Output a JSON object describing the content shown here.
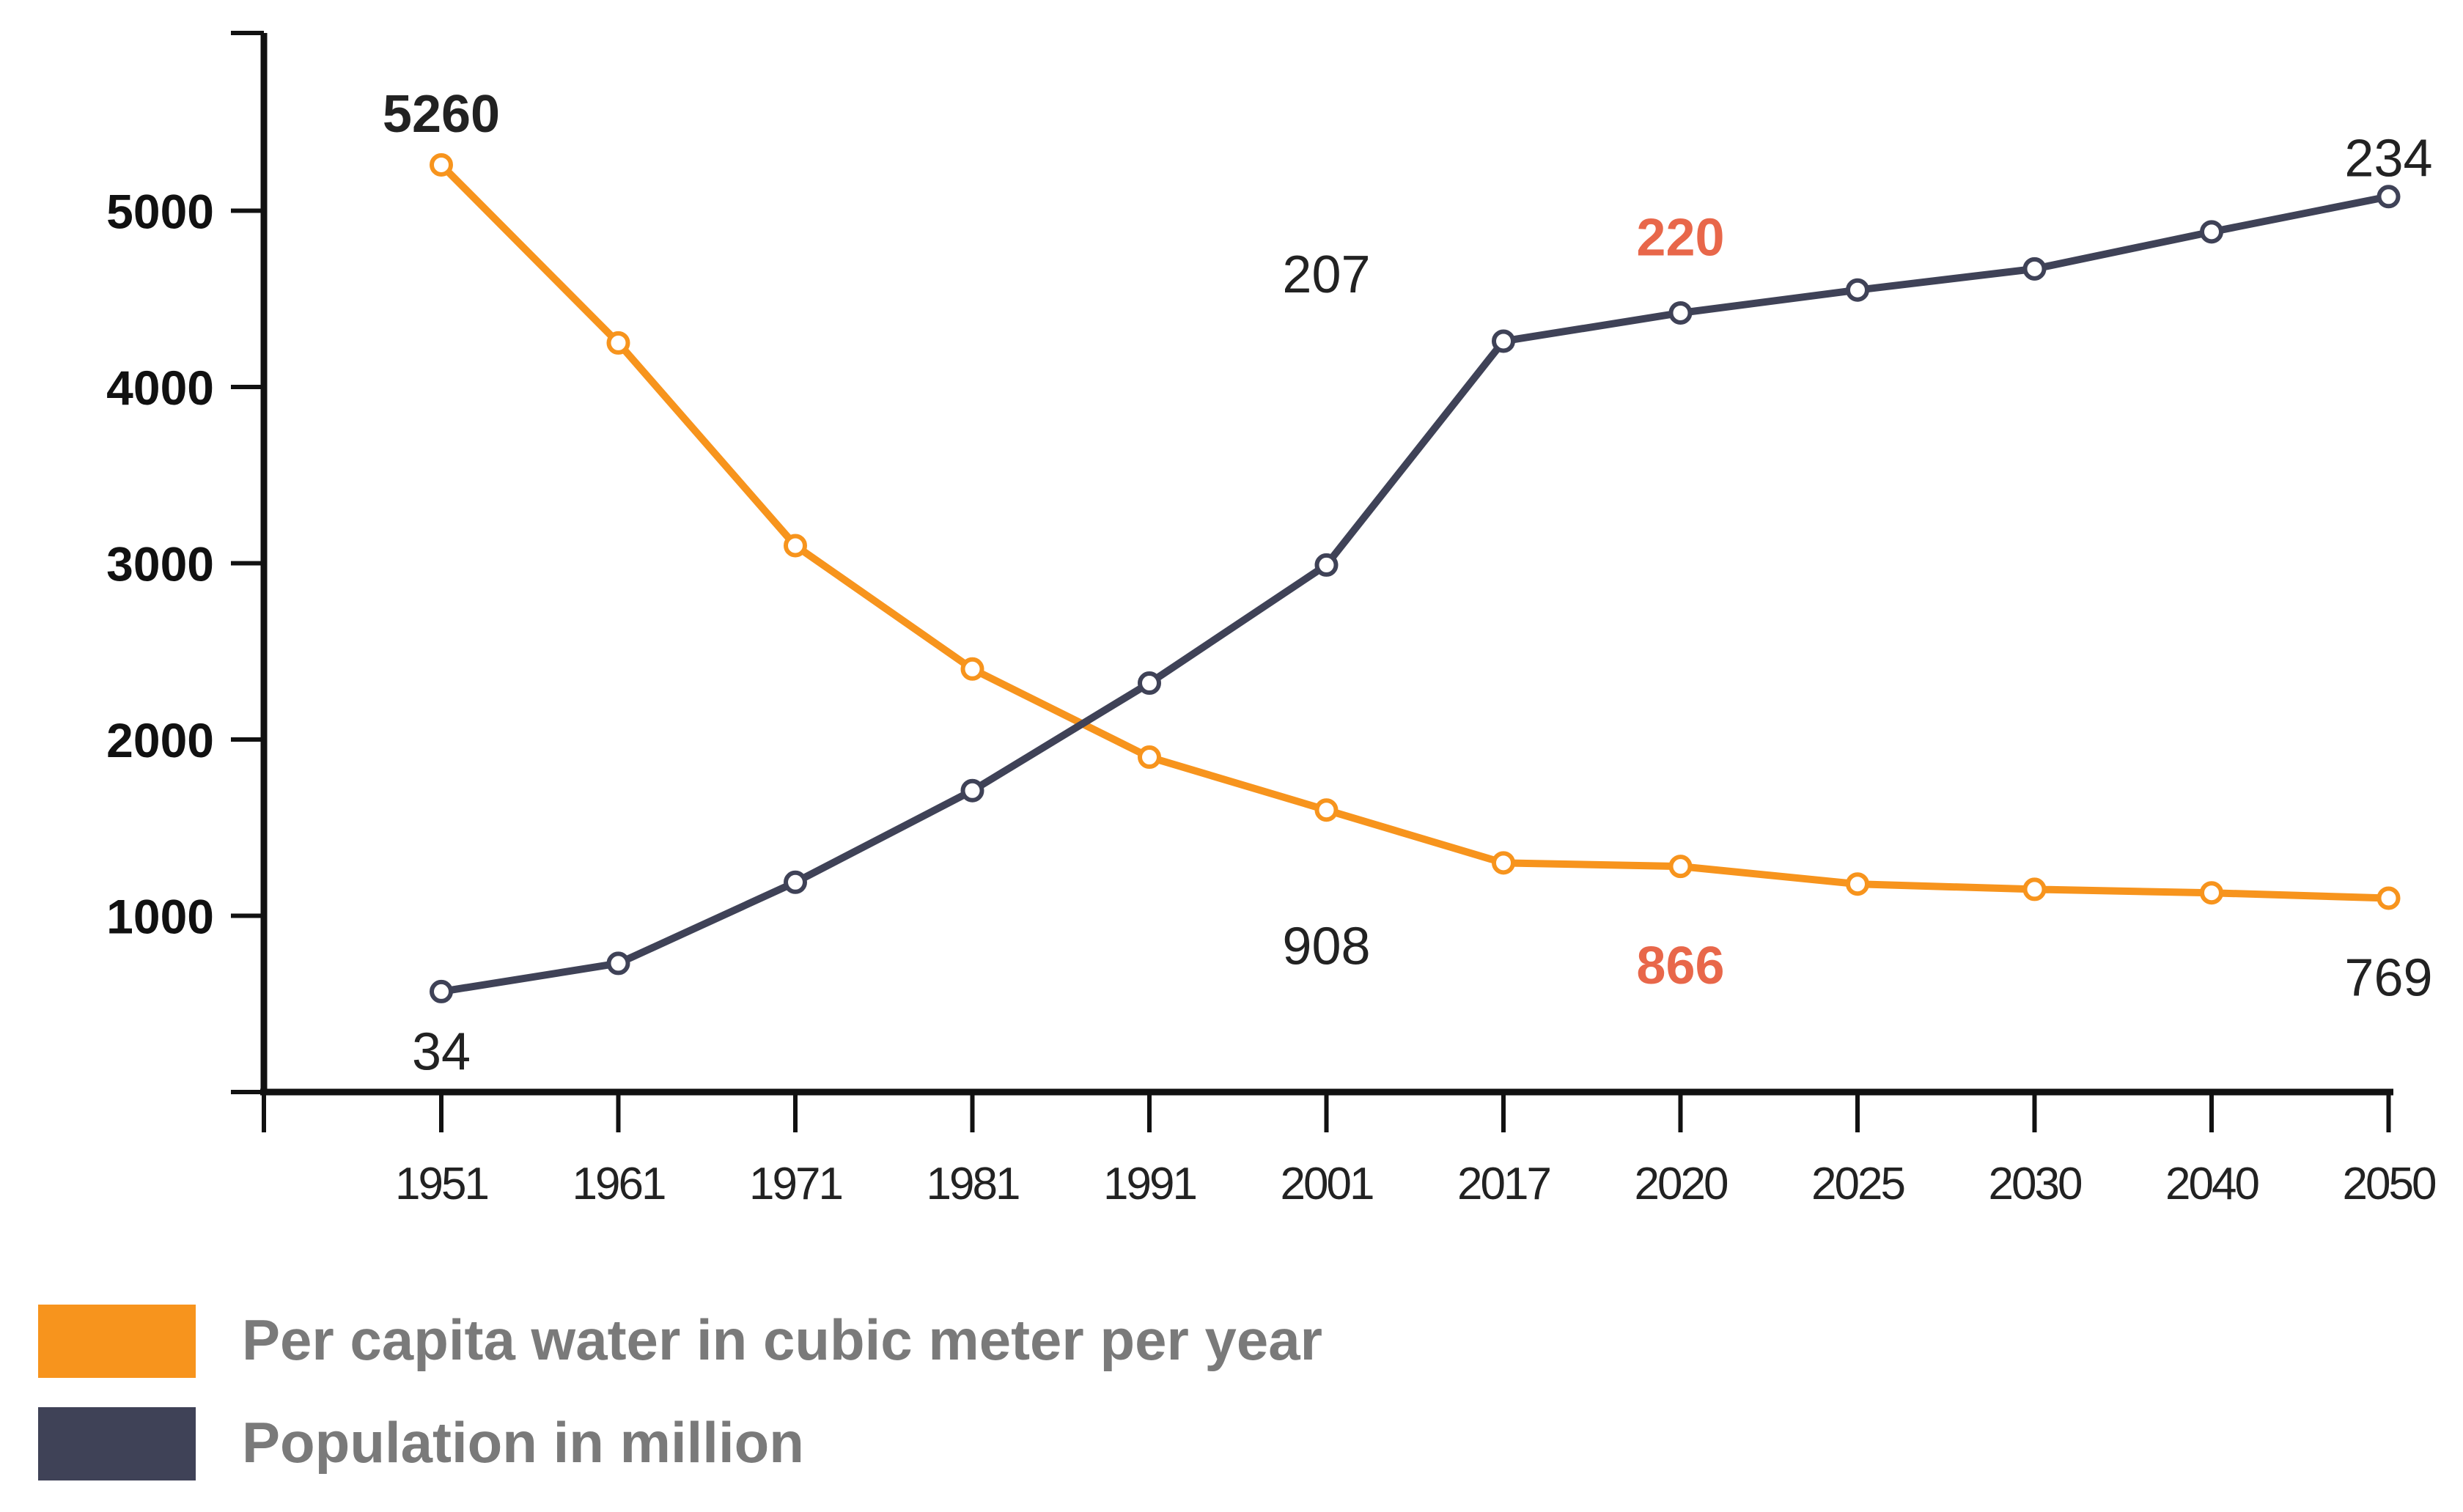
{
  "chart_data": {
    "type": "line",
    "title": "",
    "xlabel": "",
    "ylabel": "",
    "categories": [
      "1951",
      "1961",
      "1971",
      "1981",
      "1991",
      "2001",
      "2017",
      "2020",
      "2025",
      "2030",
      "2040",
      "2050"
    ],
    "y_ticks": [
      1000,
      2000,
      3000,
      4000,
      5000
    ],
    "ylim": [
      0,
      5900
    ],
    "grid": false,
    "series": [
      {
        "name": "Per capita water in cubic meter per year",
        "color": "#F7941D",
        "values": [
          5260,
          4250,
          3100,
          2400,
          1900,
          1600,
          1300,
          1280,
          1180,
          1150,
          1130,
          1100
        ]
      },
      {
        "name": "Population in million",
        "color": "#3F4257",
        "values": [
          570,
          730,
          1190,
          1710,
          2320,
          2990,
          4260,
          4420,
          4550,
          4670,
          4880,
          5080
        ]
      }
    ],
    "annotations": [
      {
        "text": "5260",
        "category": "1951",
        "y": 5550,
        "color": "#222222",
        "bold": true
      },
      {
        "text": "34",
        "category": "1951",
        "y": 230,
        "color": "#222222",
        "bold": false
      },
      {
        "text": "207",
        "category": "2001",
        "y": 4640,
        "color": "#222222",
        "bold": false
      },
      {
        "text": "908",
        "category": "2001",
        "y": 830,
        "color": "#222222",
        "bold": false
      },
      {
        "text": "220",
        "category": "2020",
        "y": 4850,
        "color": "#E8674A",
        "bold": true
      },
      {
        "text": "866",
        "category": "2020",
        "y": 720,
        "color": "#E8674A",
        "bold": true
      },
      {
        "text": "234",
        "category": "2050",
        "y": 5300,
        "color": "#222222",
        "bold": false
      },
      {
        "text": "769",
        "category": "2050",
        "y": 650,
        "color": "#222222",
        "bold": false
      }
    ],
    "legend": {
      "position": "bottom-left",
      "items": [
        {
          "label": "Per capita water in cubic meter per year",
          "color": "#F7941D"
        },
        {
          "label": "Population in million",
          "color": "#3F4257"
        }
      ]
    }
  }
}
